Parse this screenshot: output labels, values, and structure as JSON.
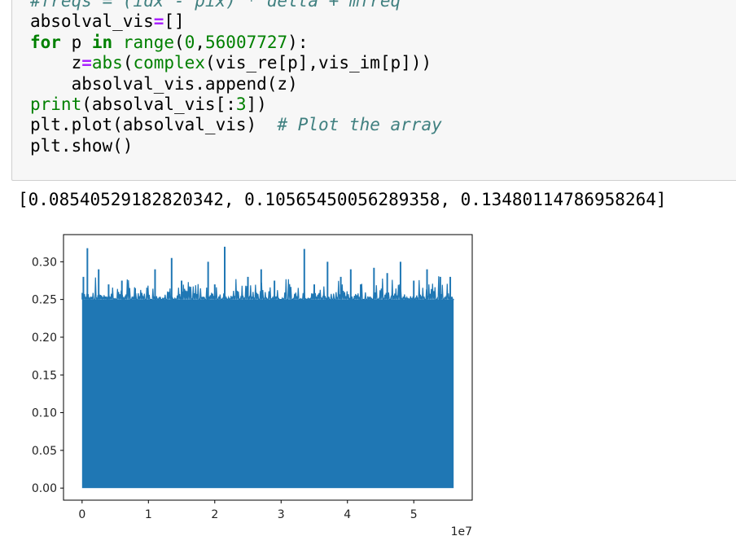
{
  "code_cell": {
    "lines": [
      [
        {
          "t": "#freqs = (idx - pix) * delta + mfreq",
          "c": "cm"
        }
      ],
      [
        {
          "t": "absolval_vis"
        },
        {
          "t": "=",
          "c": "op"
        },
        {
          "t": "[]"
        }
      ],
      [
        {
          "t": "for",
          "c": "kw"
        },
        {
          "t": " p "
        },
        {
          "t": "in",
          "c": "kw"
        },
        {
          "t": " "
        },
        {
          "t": "range",
          "c": "bi"
        },
        {
          "t": "("
        },
        {
          "t": "0",
          "c": "num"
        },
        {
          "t": ","
        },
        {
          "t": "56007727",
          "c": "num"
        },
        {
          "t": "):"
        }
      ],
      [
        {
          "t": "    z"
        },
        {
          "t": "=",
          "c": "op"
        },
        {
          "t": "abs",
          "c": "bi"
        },
        {
          "t": "("
        },
        {
          "t": "complex",
          "c": "bi"
        },
        {
          "t": "(vis_re[p],vis_im[p]))"
        }
      ],
      [
        {
          "t": "    absolval_vis.append(z)"
        }
      ],
      [
        {
          "t": "print",
          "c": "bi"
        },
        {
          "t": "(absolval_vis[:"
        },
        {
          "t": "3",
          "c": "num"
        },
        {
          "t": "])"
        }
      ],
      [
        {
          "t": "plt.plot(absolval_vis)  "
        },
        {
          "t": "# Plot the array",
          "c": "cm"
        }
      ],
      [
        {
          "t": "plt.show()"
        }
      ]
    ]
  },
  "output": {
    "text": "[0.08540529182820342, 0.10565450056289358, 0.13480114786958264]"
  },
  "chart_data": {
    "type": "line",
    "title": "",
    "xlabel": "",
    "ylabel": "",
    "xlim": [
      -2800386,
      58808113
    ],
    "ylim": [
      -0.016,
      0.336
    ],
    "x_ticks": [
      0,
      10000000,
      20000000,
      30000000,
      40000000,
      50000000
    ],
    "x_tick_labels": [
      "0",
      "1",
      "2",
      "3",
      "4",
      "5"
    ],
    "x_offset_label": "1e7",
    "y_ticks": [
      0.0,
      0.05,
      0.1,
      0.15,
      0.2,
      0.25,
      0.3
    ],
    "y_tick_labels": [
      "0.00",
      "0.05",
      "0.10",
      "0.15",
      "0.20",
      "0.25",
      "0.30"
    ],
    "color": "#1f77b4",
    "series": [
      {
        "x_range": [
          0,
          56007727
        ],
        "y_min": 0.0,
        "band_top": 0.25,
        "first_values": [
          0.08540529182820342,
          0.10565450056289358,
          0.13480114786958264
        ],
        "peaks": [
          {
            "x": 200000,
            "y": 0.28
          },
          {
            "x": 800000,
            "y": 0.318
          },
          {
            "x": 2500000,
            "y": 0.29
          },
          {
            "x": 4000000,
            "y": 0.27
          },
          {
            "x": 6000000,
            "y": 0.275
          },
          {
            "x": 8000000,
            "y": 0.265
          },
          {
            "x": 11000000,
            "y": 0.29
          },
          {
            "x": 13500000,
            "y": 0.305
          },
          {
            "x": 15000000,
            "y": 0.275
          },
          {
            "x": 19000000,
            "y": 0.3
          },
          {
            "x": 20000000,
            "y": 0.27
          },
          {
            "x": 21500000,
            "y": 0.32
          },
          {
            "x": 25000000,
            "y": 0.28
          },
          {
            "x": 27000000,
            "y": 0.29
          },
          {
            "x": 29000000,
            "y": 0.275
          },
          {
            "x": 33500000,
            "y": 0.317
          },
          {
            "x": 35000000,
            "y": 0.27
          },
          {
            "x": 37000000,
            "y": 0.3
          },
          {
            "x": 39000000,
            "y": 0.28
          },
          {
            "x": 40500000,
            "y": 0.29
          },
          {
            "x": 42000000,
            "y": 0.27
          },
          {
            "x": 44000000,
            "y": 0.292
          },
          {
            "x": 46000000,
            "y": 0.285
          },
          {
            "x": 48000000,
            "y": 0.3
          },
          {
            "x": 50000000,
            "y": 0.275
          },
          {
            "x": 52000000,
            "y": 0.29
          },
          {
            "x": 54000000,
            "y": 0.28
          },
          {
            "x": 55500000,
            "y": 0.28
          }
        ]
      }
    ]
  }
}
